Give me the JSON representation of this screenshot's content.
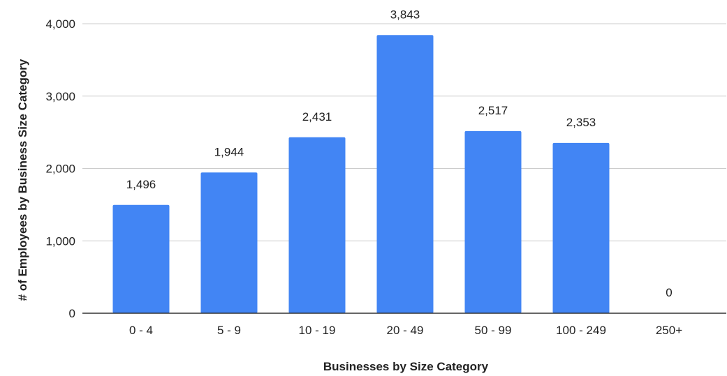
{
  "chart_data": {
    "type": "bar",
    "title": "",
    "xlabel": "Businesses by Size Category",
    "ylabel": "# of Employees by Business Size Category",
    "categories": [
      "0 - 4",
      "5 - 9",
      "10 - 19",
      "20 - 49",
      "50 - 99",
      "100 - 249",
      "250+"
    ],
    "values": [
      1496,
      1944,
      2431,
      3843,
      2517,
      2353,
      0
    ],
    "value_labels": [
      "1,496",
      "1,944",
      "2,431",
      "3,843",
      "2,517",
      "2,353",
      "0"
    ],
    "ylim": [
      0,
      4000
    ],
    "yticks": [
      0,
      1000,
      2000,
      3000,
      4000
    ],
    "ytick_labels": [
      "0",
      "1,000",
      "2,000",
      "3,000",
      "4,000"
    ],
    "grid": true,
    "legend": "none",
    "colors": {
      "bar": "#4285f4",
      "grid": "#cccccc",
      "axis": "#333333"
    }
  }
}
